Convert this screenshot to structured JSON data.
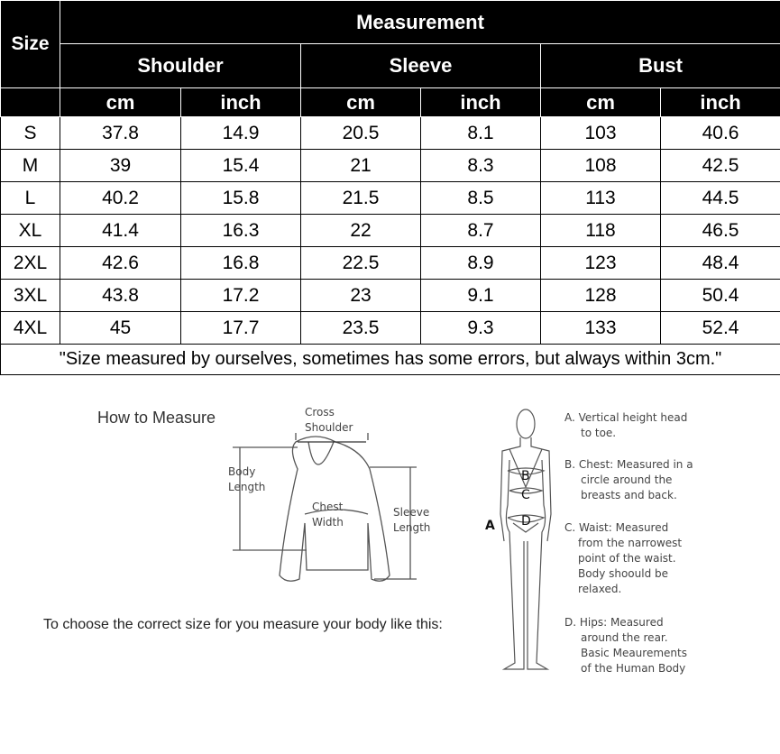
{
  "table": {
    "size_header": "Size",
    "measurement_header": "Measurement",
    "groups": [
      "Shoulder",
      "Sleeve",
      "Bust"
    ],
    "units": [
      "cm",
      "inch",
      "cm",
      "inch",
      "cm",
      "inch"
    ],
    "rows": [
      [
        "S",
        "37.8",
        "14.9",
        "20.5",
        "8.1",
        "103",
        "40.6"
      ],
      [
        "M",
        "39",
        "15.4",
        "21",
        "8.3",
        "108",
        "42.5"
      ],
      [
        "L",
        "40.2",
        "15.8",
        "21.5",
        "8.5",
        "113",
        "44.5"
      ],
      [
        "XL",
        "41.4",
        "16.3",
        "22",
        "8.7",
        "118",
        "46.5"
      ],
      [
        "2XL",
        "42.6",
        "16.8",
        "22.5",
        "8.9",
        "123",
        "48.4"
      ],
      [
        "3XL",
        "43.8",
        "17.2",
        "23",
        "9.1",
        "128",
        "50.4"
      ],
      [
        "4XL",
        "45",
        "17.7",
        "23.5",
        "9.3",
        "133",
        "52.4"
      ]
    ],
    "note": "\"Size measured by ourselves, sometimes has some errors, but always within 3cm.\""
  },
  "guide": {
    "title": "How to Measure",
    "cross_shoulder": [
      "Cross",
      "Shoulder"
    ],
    "body_length": [
      "Body",
      "Length"
    ],
    "chest_width": [
      "Chest",
      "Width"
    ],
    "sleeve_length": [
      "Sleeve",
      "Length"
    ],
    "instruction": "To choose the correct size for you measure your body like this:",
    "body_letters": [
      "A",
      "B",
      "C",
      "D"
    ],
    "notes": [
      [
        "A. Vertical height head",
        "to toe."
      ],
      [
        "B. Chest: Measured in a",
        "circle around the",
        "breasts and back."
      ],
      [
        "C. Waist: Measured",
        "from the narrowest",
        "point of the waist.",
        "Body shoould be",
        "relaxed."
      ],
      [
        "D. Hips: Measured",
        "around the rear.",
        "Basic Meaurements",
        "of the Human Body"
      ]
    ]
  }
}
